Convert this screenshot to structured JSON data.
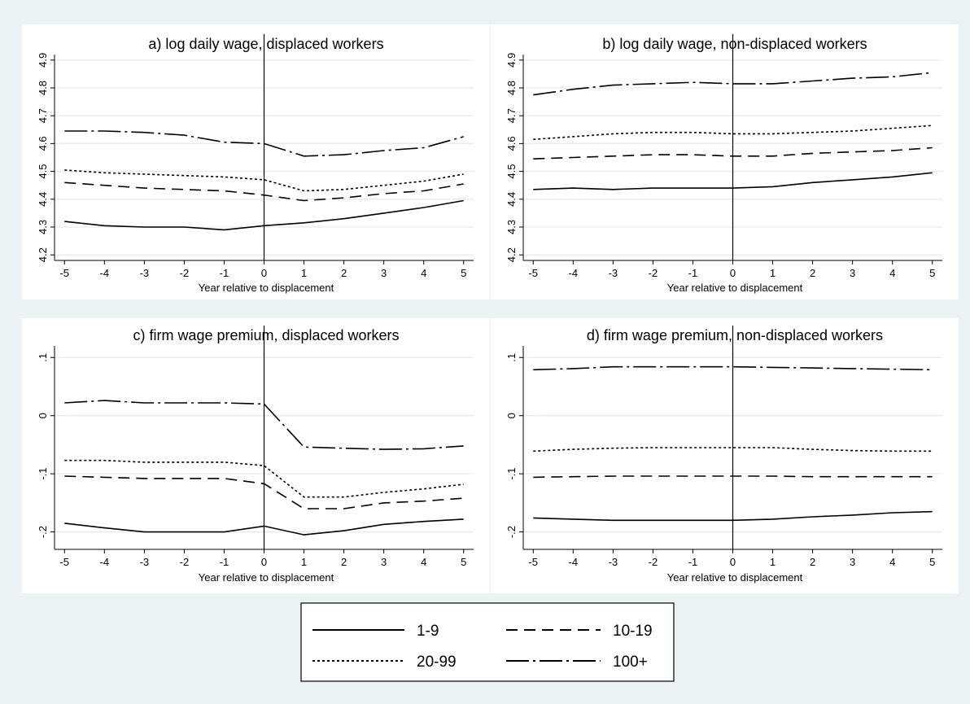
{
  "legend": [
    {
      "label": "1-9",
      "style": "solid"
    },
    {
      "label": "10-19",
      "style": "dashed"
    },
    {
      "label": "20-99",
      "style": "dotted"
    },
    {
      "label": "100+",
      "style": "dashdot"
    }
  ],
  "chart_data": [
    {
      "type": "line",
      "title": "a) log daily wage, displaced workers",
      "xlabel": "Year relative to displacement",
      "ylabel": "",
      "x": [
        -5,
        -4,
        -3,
        -2,
        -1,
        0,
        1,
        2,
        3,
        4,
        5
      ],
      "xticks": [
        "-5",
        "-4",
        "-3",
        "-2",
        "-1",
        "0",
        "1",
        "2",
        "3",
        "4",
        "5"
      ],
      "yticks": [
        4.2,
        4.3,
        4.4,
        4.5,
        4.6,
        4.7,
        4.8,
        4.9
      ],
      "ytick_labels": [
        "4.2",
        "4.3",
        "4.4",
        "4.5",
        "4.6",
        "4.7",
        "4.8",
        "4.9"
      ],
      "ylim": [
        4.18,
        4.92
      ],
      "grid": true,
      "vline": 0,
      "series": [
        {
          "name": "1-9",
          "values": [
            4.32,
            4.305,
            4.3,
            4.3,
            4.29,
            4.305,
            4.315,
            4.33,
            4.35,
            4.37,
            4.395
          ]
        },
        {
          "name": "10-19",
          "values": [
            4.46,
            4.45,
            4.44,
            4.435,
            4.43,
            4.415,
            4.395,
            4.405,
            4.42,
            4.43,
            4.455
          ]
        },
        {
          "name": "20-99",
          "values": [
            4.505,
            4.495,
            4.49,
            4.485,
            4.48,
            4.47,
            4.43,
            4.435,
            4.45,
            4.465,
            4.49
          ]
        },
        {
          "name": "100+",
          "values": [
            4.645,
            4.645,
            4.64,
            4.63,
            4.605,
            4.6,
            4.555,
            4.56,
            4.575,
            4.585,
            4.625
          ]
        }
      ]
    },
    {
      "type": "line",
      "title": "b) log daily wage, non-displaced workers",
      "xlabel": "Year relative to displacement",
      "ylabel": "",
      "x": [
        -5,
        -4,
        -3,
        -2,
        -1,
        0,
        1,
        2,
        3,
        4,
        5
      ],
      "xticks": [
        "-5",
        "-4",
        "-3",
        "-2",
        "-1",
        "0",
        "1",
        "2",
        "3",
        "4",
        "5"
      ],
      "yticks": [
        4.2,
        4.3,
        4.4,
        4.5,
        4.6,
        4.7,
        4.8,
        4.9
      ],
      "ytick_labels": [
        "4.2",
        "4.3",
        "4.4",
        "4.5",
        "4.6",
        "4.7",
        "4.8",
        "4.9"
      ],
      "ylim": [
        4.18,
        4.92
      ],
      "grid": true,
      "vline": 0,
      "series": [
        {
          "name": "1-9",
          "values": [
            4.435,
            4.44,
            4.435,
            4.44,
            4.44,
            4.44,
            4.445,
            4.46,
            4.47,
            4.48,
            4.495
          ]
        },
        {
          "name": "10-19",
          "values": [
            4.545,
            4.55,
            4.555,
            4.56,
            4.56,
            4.555,
            4.555,
            4.565,
            4.57,
            4.575,
            4.585
          ]
        },
        {
          "name": "20-99",
          "values": [
            4.615,
            4.625,
            4.635,
            4.64,
            4.64,
            4.635,
            4.635,
            4.64,
            4.645,
            4.655,
            4.665
          ]
        },
        {
          "name": "100+",
          "values": [
            4.775,
            4.795,
            4.81,
            4.815,
            4.82,
            4.815,
            4.815,
            4.825,
            4.835,
            4.84,
            4.855
          ]
        }
      ]
    },
    {
      "type": "line",
      "title": "c) firm wage premium, displaced workers",
      "xlabel": "Year relative to displacement",
      "ylabel": "",
      "x": [
        -5,
        -4,
        -3,
        -2,
        -1,
        0,
        1,
        2,
        3,
        4,
        5
      ],
      "xticks": [
        "-5",
        "-4",
        "-3",
        "-2",
        "-1",
        "0",
        "1",
        "2",
        "3",
        "4",
        "5"
      ],
      "yticks": [
        -0.2,
        -0.1,
        0,
        0.1
      ],
      "ytick_labels": [
        "-.2",
        "-.1",
        "0",
        ".1"
      ],
      "ylim": [
        -0.23,
        0.12
      ],
      "grid": true,
      "vline": 0,
      "series": [
        {
          "name": "1-9",
          "values": [
            -0.185,
            -0.193,
            -0.2,
            -0.2,
            -0.2,
            -0.19,
            -0.205,
            -0.198,
            -0.187,
            -0.182,
            -0.178
          ]
        },
        {
          "name": "10-19",
          "values": [
            -0.104,
            -0.106,
            -0.108,
            -0.108,
            -0.108,
            -0.117,
            -0.16,
            -0.16,
            -0.15,
            -0.147,
            -0.142
          ]
        },
        {
          "name": "20-99",
          "values": [
            -0.077,
            -0.077,
            -0.08,
            -0.08,
            -0.08,
            -0.086,
            -0.14,
            -0.14,
            -0.132,
            -0.126,
            -0.118
          ]
        },
        {
          "name": "100+",
          "values": [
            0.022,
            0.026,
            0.022,
            0.022,
            0.022,
            0.02,
            -0.054,
            -0.056,
            -0.058,
            -0.057,
            -0.052
          ]
        }
      ]
    },
    {
      "type": "line",
      "title": "d) firm wage premium, non-displaced workers",
      "xlabel": "Year relative to displacement",
      "ylabel": "",
      "x": [
        -5,
        -4,
        -3,
        -2,
        -1,
        0,
        1,
        2,
        3,
        4,
        5
      ],
      "xticks": [
        "-5",
        "-4",
        "-3",
        "-2",
        "-1",
        "0",
        "1",
        "2",
        "3",
        "4",
        "5"
      ],
      "yticks": [
        -0.2,
        -0.1,
        0,
        0.1
      ],
      "ytick_labels": [
        "-.2",
        "-.1",
        "0",
        ".1"
      ],
      "ylim": [
        -0.23,
        0.12
      ],
      "grid": true,
      "vline": 0,
      "series": [
        {
          "name": "1-9",
          "values": [
            -0.176,
            -0.178,
            -0.18,
            -0.18,
            -0.18,
            -0.18,
            -0.178,
            -0.174,
            -0.171,
            -0.167,
            -0.165
          ]
        },
        {
          "name": "10-19",
          "values": [
            -0.106,
            -0.105,
            -0.104,
            -0.104,
            -0.104,
            -0.104,
            -0.104,
            -0.105,
            -0.105,
            -0.105,
            -0.105
          ]
        },
        {
          "name": "20-99",
          "values": [
            -0.061,
            -0.058,
            -0.056,
            -0.055,
            -0.055,
            -0.055,
            -0.055,
            -0.058,
            -0.06,
            -0.061,
            -0.061
          ]
        },
        {
          "name": "100+",
          "values": [
            0.079,
            0.081,
            0.084,
            0.084,
            0.084,
            0.084,
            0.083,
            0.082,
            0.081,
            0.08,
            0.079
          ]
        }
      ]
    }
  ]
}
